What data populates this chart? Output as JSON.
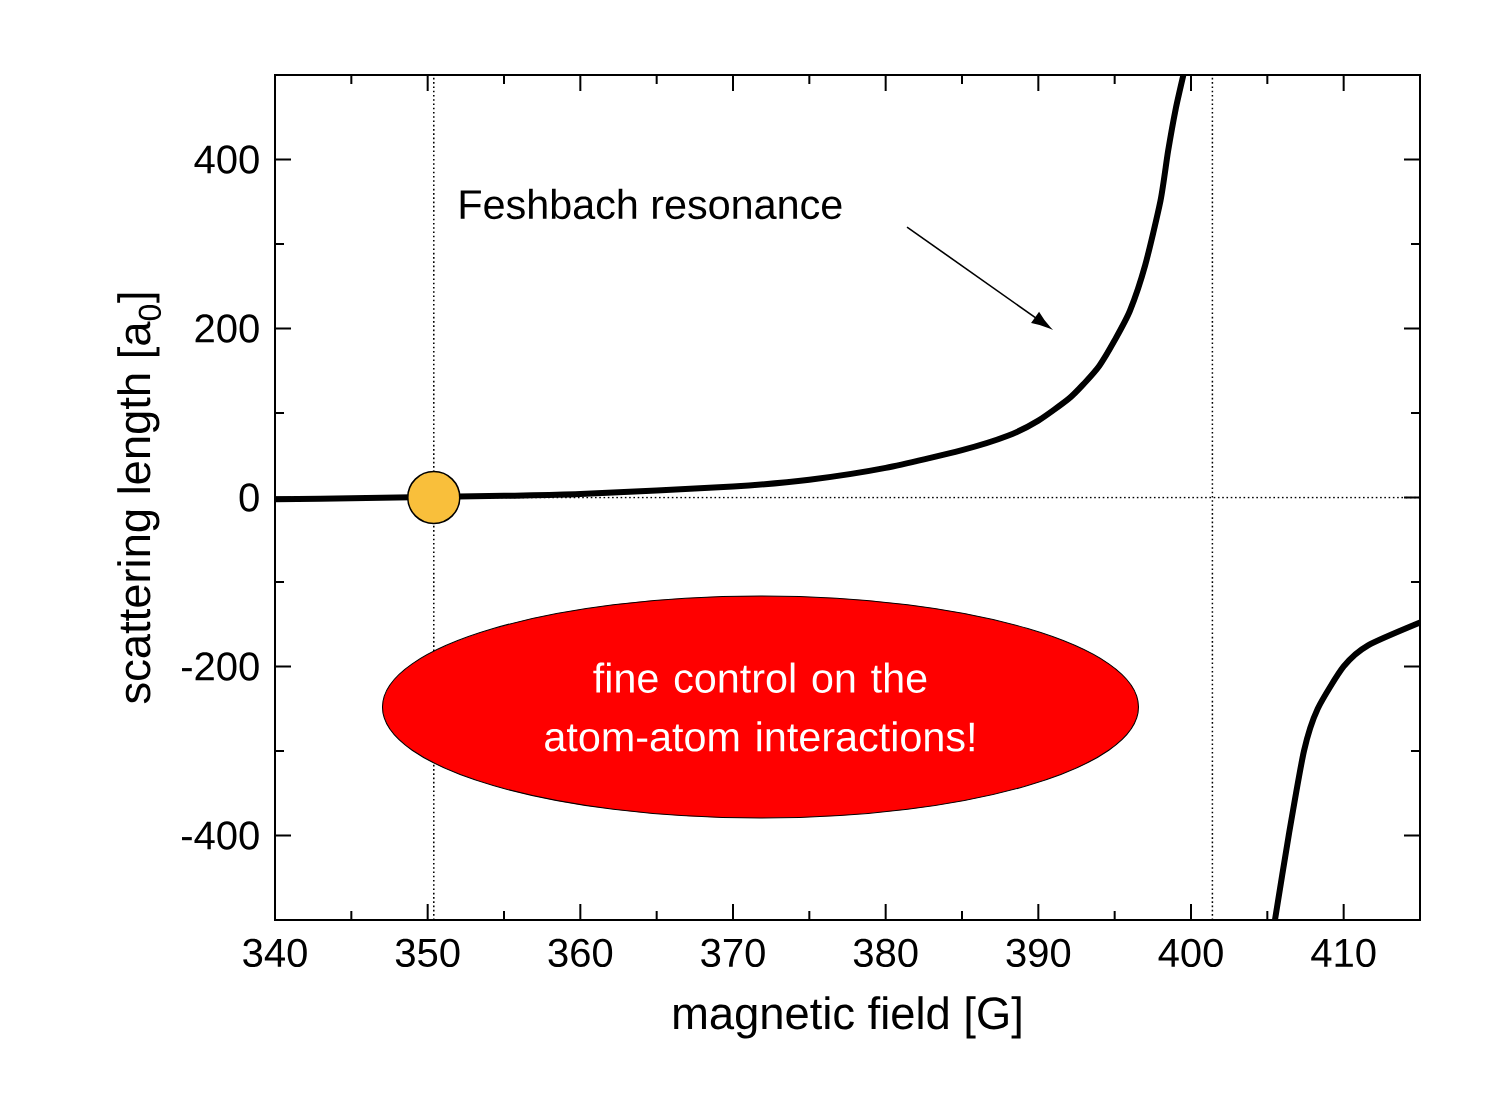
{
  "chart_data": {
    "type": "line",
    "xlabel": "magnetic field [G]",
    "ylabel": "scattering length [a$_{0}$]",
    "xlim": [
      340,
      415
    ],
    "ylim": [
      -500,
      500
    ],
    "xticks": [
      340,
      {
        "value": 345,
        "label": null
      },
      350,
      {
        "value": 355,
        "label": null
      },
      360,
      {
        "value": 365,
        "label": null
      },
      370,
      {
        "value": 375,
        "label": null
      },
      380,
      {
        "value": 385,
        "label": null
      },
      390,
      {
        "value": 395,
        "label": null
      },
      400,
      {
        "value": 405,
        "label": null
      },
      410
    ],
    "yticks": [
      {
        "value": -500,
        "label": null
      },
      -400,
      {
        "value": -300,
        "label": null
      },
      -200,
      {
        "value": -100,
        "label": null
      },
      0,
      {
        "value": 100,
        "label": null
      },
      200,
      {
        "value": 300,
        "label": null
      },
      400,
      {
        "value": 500,
        "label": null
      }
    ],
    "series": [
      {
        "type": "scatter",
        "color": "#f9bf3b",
        "x": [
          350.4
        ],
        "values": [
          0
        ]
      },
      {
        "color": "#000000",
        "x": [
          340,
          345,
          355,
          360,
          370,
          375,
          380,
          385,
          388,
          390,
          392,
          393,
          394,
          395,
          396,
          397,
          398,
          398.5,
          399,
          399.5,
          402,
          405.5,
          406.4,
          407.4,
          408.3,
          410,
          411.6,
          415
        ],
        "values": [
          -2,
          -1,
          2,
          4,
          13,
          21,
          35,
          56,
          73,
          91,
          117,
          135,
          156,
          186,
          221,
          275,
          351,
          410,
          460,
          500,
          null,
          -500,
          -400,
          -300,
          -250,
          -200,
          -175,
          -148
        ]
      }
    ],
    "ref_lines": [
      {
        "axis": "x",
        "value": 350.4,
        "line_style": "dotted"
      },
      {
        "axis": "x",
        "value": 401.4,
        "line_style": "dotted"
      },
      {
        "axis": "y",
        "value": 0,
        "line_style": "dotted"
      }
    ],
    "annotations": [
      "Feshbach resonance",
      "fine control on the atom-atom interactions!"
    ],
    "grid": false,
    "marker": "none",
    "line_style": "solid"
  }
}
